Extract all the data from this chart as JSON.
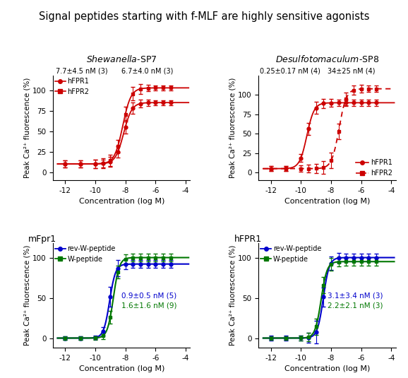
{
  "title": "Signal peptides starting with f-MLF are highly sensitive agonists",
  "title_fontsize": 10.5,
  "top_left_title_italic": "Shewanella",
  "top_left_title_rest": "-SP7",
  "top_right_title_italic": "Desulfotomaculum",
  "top_right_title_rest": "-SP8",
  "top_left_label1": "7.7±4.5 nM (3)",
  "top_left_label2": "6.7±4.0 nM (3)",
  "top_right_label1": "0.25±0.17 nM (4)",
  "top_right_label2": "34±25 nM (4)",
  "bottom_left_title": "mFpr1",
  "bottom_right_title": "hFPR1",
  "bottom_left_label1": "0.9±0.5 nM (5)",
  "bottom_left_label2": "1.6±1.6 nM (9)",
  "bottom_right_label1": "3.1±3.4 nM (3)",
  "bottom_right_label2": "2.2±2.1 nM (3)",
  "red_color": "#cc0000",
  "blue_color": "#0000cc",
  "green_color": "#007700",
  "ylabel": "Peak Ca²⁺ fluorescence (%)",
  "xlabel": "Concentration (log M)",
  "legend_hfpr1": "hFPR1",
  "legend_hfpr2": "hFPR2",
  "legend_rev": "rev-W-peptide",
  "legend_w": "W-peptide"
}
